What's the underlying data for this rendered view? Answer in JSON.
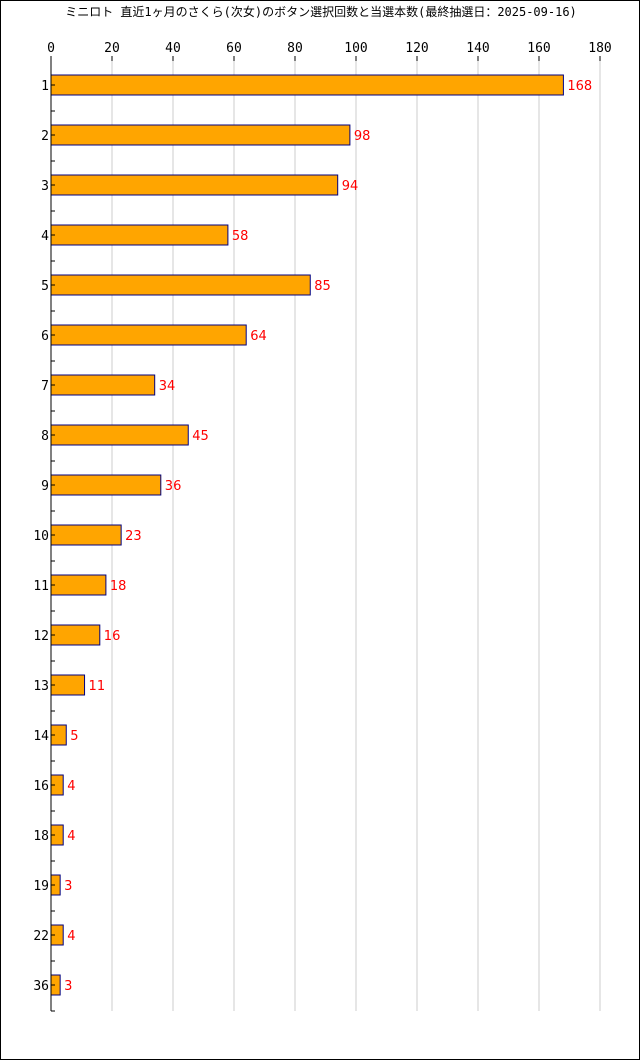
{
  "colors": {
    "bar_fill": "#ffa500",
    "bar_stroke": "#000080",
    "value_label": "#ff0000",
    "grid": "#cccccc",
    "axis": "#000000"
  },
  "chart_data": {
    "type": "bar",
    "orientation": "horizontal",
    "title": "ミニロト 直近1ヶ月のさくら(次女)のボタン選択回数と当選本数(最終抽選日：2025-09-16)",
    "categories": [
      "1",
      "2",
      "3",
      "4",
      "5",
      "6",
      "7",
      "8",
      "9",
      "10",
      "11",
      "12",
      "13",
      "14",
      "16",
      "18",
      "19",
      "22",
      "36"
    ],
    "values": [
      168,
      98,
      94,
      58,
      85,
      64,
      34,
      45,
      36,
      23,
      18,
      16,
      11,
      5,
      4,
      4,
      3,
      4,
      3
    ],
    "xlim": [
      0,
      180
    ],
    "x_ticks": [
      0,
      20,
      40,
      60,
      80,
      100,
      120,
      140,
      160,
      180
    ],
    "xlabel": "",
    "ylabel": "",
    "grid": true,
    "data_labels": true
  }
}
